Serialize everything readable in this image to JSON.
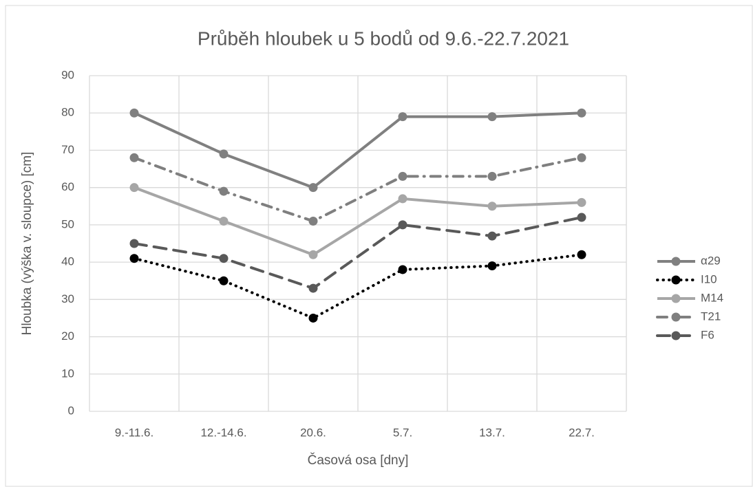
{
  "chart_data": {
    "type": "line",
    "title": "Průběh hloubek u 5 bodů od 9.6.-22.7.2021",
    "y_label": "Hloubka (výška v. sloupce) [cm]",
    "x_label": "Časová osa [dny]",
    "categories": [
      "9.-11.6.",
      "12.-14.6.",
      "20.6.",
      "5.7.",
      "13.7.",
      "22.7."
    ],
    "series": [
      {
        "name": "α29",
        "color": "#808080",
        "dash": "solid",
        "values": [
          80,
          69,
          60,
          79,
          79,
          80
        ]
      },
      {
        "name": "I10",
        "color": "#000000",
        "dash": "dot",
        "values": [
          41,
          35,
          25,
          38,
          39,
          42
        ]
      },
      {
        "name": "M14",
        "color": "#a6a6a6",
        "dash": "solid",
        "values": [
          60,
          51,
          42,
          57,
          55,
          56
        ]
      },
      {
        "name": "T21",
        "color": "#7f7f7f",
        "dash": "dashdot",
        "values": [
          68,
          59,
          51,
          63,
          63,
          68
        ]
      },
      {
        "name": "F6",
        "color": "#595959",
        "dash": "dash",
        "values": [
          45,
          41,
          33,
          50,
          47,
          52
        ]
      }
    ],
    "ylim": [
      0,
      90
    ],
    "yticks": [
      0,
      10,
      20,
      30,
      40,
      50,
      60,
      70,
      80,
      90
    ],
    "grid": true,
    "legend": "right"
  }
}
